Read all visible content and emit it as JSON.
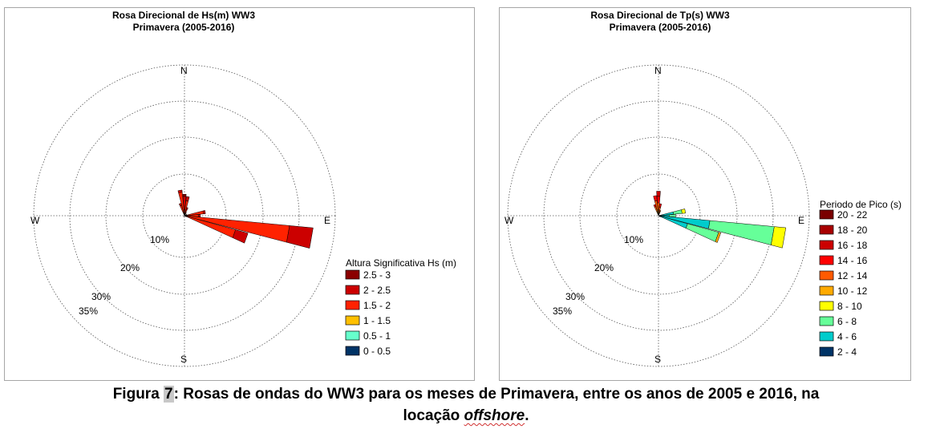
{
  "caption": {
    "prefix": "Figura ",
    "number": "7",
    "text1": ": Rosas de ondas do WW3 para os meses de Primavera, entre os anos de 2005 e 2016, na",
    "text2": "locação ",
    "offshore": "offshore",
    "end": "."
  },
  "chart_data": [
    {
      "type": "windrose",
      "title": "Rosa Direcional de Hs(m) WW3",
      "subtitle": "Primavera (2005-2016)",
      "directions": [
        "N",
        "E",
        "S",
        "W"
      ],
      "ring_labels": [
        "10%",
        "20%",
        "30%",
        "35%"
      ],
      "radial_max": 35,
      "grid": true,
      "legend": {
        "title": "Altura Significativa Hs (m)",
        "position": "lower-right",
        "bins": [
          {
            "label": "2.5 - 3",
            "color": "#8b0000"
          },
          {
            "label": "2 - 2.5",
            "color": "#cc0000"
          },
          {
            "label": "1.5 - 2",
            "color": "#ff2200"
          },
          {
            "label": "1 - 1.5",
            "color": "#ffc000"
          },
          {
            "label": "0.5 - 1",
            "color": "#66ffcc"
          },
          {
            "label": "0 - 0.5",
            "color": "#003366"
          }
        ]
      },
      "petals": [
        {
          "direction": 0,
          "segments": [
            {
              "color": "#ff2200",
              "value": 1.5
            },
            {
              "color": "#cc0000",
              "value": 3.0
            },
            {
              "color": "#8b0000",
              "value": 0.5
            }
          ]
        },
        {
          "direction": 10,
          "segments": [
            {
              "color": "#ff2200",
              "value": 3.5
            },
            {
              "color": "#cc0000",
              "value": 1.0
            }
          ]
        },
        {
          "direction": 20,
          "segments": [
            {
              "color": "#ff2200",
              "value": 1.5
            },
            {
              "color": "#cc0000",
              "value": 0.5
            }
          ]
        },
        {
          "direction": 30,
          "segments": [
            {
              "color": "#ffc000",
              "value": 0.3
            },
            {
              "color": "#ff2200",
              "value": 0.5
            }
          ]
        },
        {
          "direction": 350,
          "segments": [
            {
              "color": "#ff2200",
              "value": 5.5
            },
            {
              "color": "#cc0000",
              "value": 0.5
            }
          ]
        },
        {
          "direction": 340,
          "segments": [
            {
              "color": "#ff2200",
              "value": 2.5
            },
            {
              "color": "#cc0000",
              "value": 0.5
            }
          ]
        },
        {
          "direction": 60,
          "segments": [
            {
              "color": "#ffc000",
              "value": 0.3
            },
            {
              "color": "#ff2200",
              "value": 0.3
            }
          ]
        },
        {
          "direction": 80,
          "segments": [
            {
              "color": "#ffc000",
              "value": 0.7
            },
            {
              "color": "#ff2200",
              "value": 3.8
            },
            {
              "color": "#cc0000",
              "value": 0.4
            }
          ]
        },
        {
          "direction": 90,
          "segments": [
            {
              "color": "#ffc000",
              "value": 0.8
            },
            {
              "color": "#ff2200",
              "value": 2.5
            },
            {
              "color": "#cc0000",
              "value": 0.4
            }
          ]
        },
        {
          "direction": 100,
          "segments": [
            {
              "color": "#ffc000",
              "value": 0.5
            },
            {
              "color": "#ff2200",
              "value": 24.0
            },
            {
              "color": "#cc0000",
              "value": 5.5
            }
          ]
        },
        {
          "direction": 110,
          "segments": [
            {
              "color": "#ffc000",
              "value": 0.3
            },
            {
              "color": "#ff2200",
              "value": 12.0
            },
            {
              "color": "#cc0000",
              "value": 3.0
            }
          ]
        },
        {
          "direction": 120,
          "segments": [
            {
              "color": "#ff2200",
              "value": 0.5
            }
          ]
        },
        {
          "direction": 220,
          "segments": [
            {
              "color": "#ff2200",
              "value": 0.3
            }
          ]
        }
      ]
    },
    {
      "type": "windrose",
      "title": "Rosa Direcional de Tp(s) WW3",
      "subtitle": "Primavera (2005-2016)",
      "directions": [
        "N",
        "E",
        "S",
        "W"
      ],
      "ring_labels": [
        "10%",
        "20%",
        "30%",
        "35%"
      ],
      "radial_max": 35,
      "grid": true,
      "legend": {
        "title": "Periodo de Pico (s)",
        "position": "right",
        "bins": [
          {
            "label": "20 - 22",
            "color": "#7a0000"
          },
          {
            "label": "18 - 20",
            "color": "#a80000"
          },
          {
            "label": "16 - 18",
            "color": "#cc0000"
          },
          {
            "label": "14 - 16",
            "color": "#ff0000"
          },
          {
            "label": "12 - 14",
            "color": "#ff5a00"
          },
          {
            "label": "10 - 12",
            "color": "#ffaa00"
          },
          {
            "label": "8 - 10",
            "color": "#ffff00"
          },
          {
            "label": "6 - 8",
            "color": "#66ff99"
          },
          {
            "label": "4 - 6",
            "color": "#00cccc"
          },
          {
            "label": "2 - 4",
            "color": "#003366"
          }
        ]
      },
      "petals": [
        {
          "direction": 0,
          "segments": [
            {
              "color": "#ffaa00",
              "value": 1.0
            },
            {
              "color": "#ff5a00",
              "value": 2.0
            },
            {
              "color": "#ff0000",
              "value": 1.5
            },
            {
              "color": "#cc0000",
              "value": 1.2
            }
          ]
        },
        {
          "direction": 350,
          "segments": [
            {
              "color": "#ffaa00",
              "value": 1.5
            },
            {
              "color": "#ff5a00",
              "value": 2.0
            },
            {
              "color": "#ff0000",
              "value": 1.2
            }
          ]
        },
        {
          "direction": 340,
          "segments": [
            {
              "color": "#ffaa00",
              "value": 1.0
            },
            {
              "color": "#ff5a00",
              "value": 1.2
            },
            {
              "color": "#ff0000",
              "value": 0.5
            }
          ]
        },
        {
          "direction": 10,
          "segments": [
            {
              "color": "#ffaa00",
              "value": 0.8
            },
            {
              "color": "#ff5a00",
              "value": 1.2
            },
            {
              "color": "#ff0000",
              "value": 0.8
            }
          ]
        },
        {
          "direction": 20,
          "segments": [
            {
              "color": "#ffaa00",
              "value": 0.5
            },
            {
              "color": "#ff5a00",
              "value": 0.8
            }
          ]
        },
        {
          "direction": 80,
          "segments": [
            {
              "color": "#00cccc",
              "value": 3.5
            },
            {
              "color": "#66ff99",
              "value": 2.0
            },
            {
              "color": "#ffff00",
              "value": 0.8
            }
          ]
        },
        {
          "direction": 90,
          "segments": [
            {
              "color": "#00cccc",
              "value": 2.5
            },
            {
              "color": "#66ff99",
              "value": 1.5
            }
          ]
        },
        {
          "direction": 100,
          "segments": [
            {
              "color": "#00cccc",
              "value": 12.0
            },
            {
              "color": "#66ff99",
              "value": 15.0
            },
            {
              "color": "#ffff00",
              "value": 2.7
            }
          ]
        },
        {
          "direction": 110,
          "segments": [
            {
              "color": "#00cccc",
              "value": 7.0
            },
            {
              "color": "#66ff99",
              "value": 7.5
            },
            {
              "color": "#ffaa00",
              "value": 0.5
            }
          ]
        },
        {
          "direction": 120,
          "segments": [
            {
              "color": "#00cccc",
              "value": 0.5
            }
          ]
        }
      ]
    }
  ]
}
